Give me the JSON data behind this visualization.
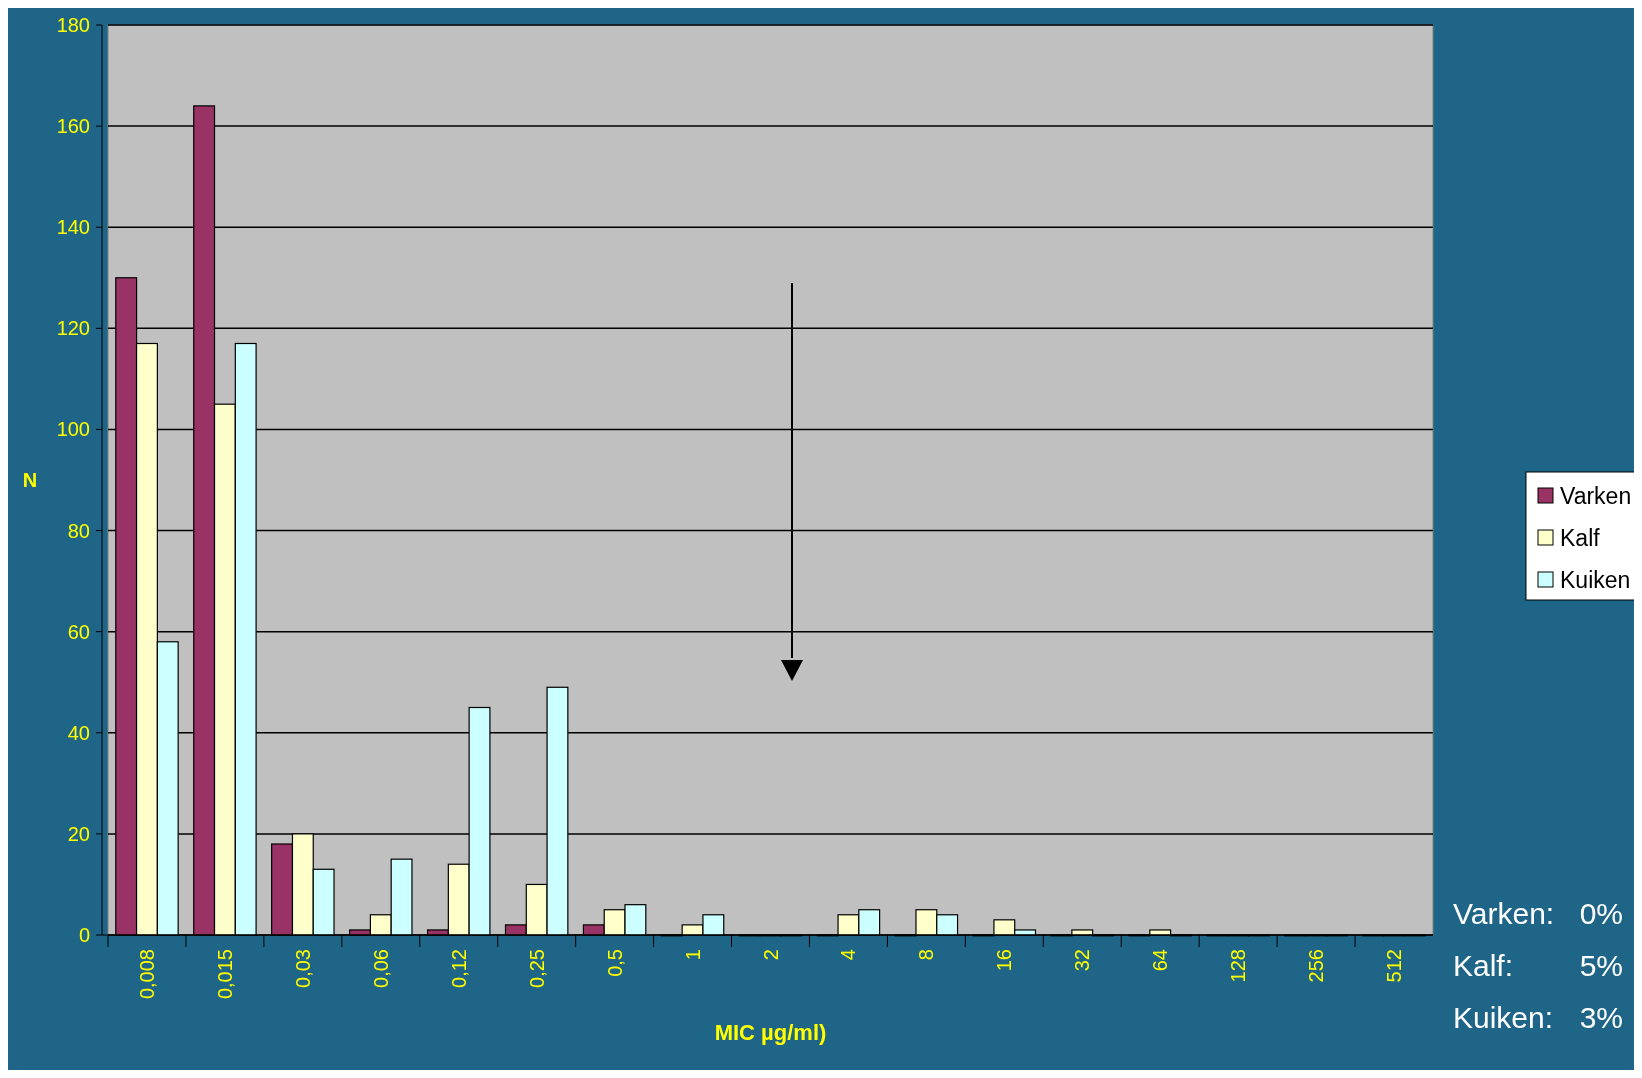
{
  "chart_data": {
    "type": "bar",
    "xlabel": "MIC µg/ml)",
    "ylabel": "N",
    "categories": [
      "0,008",
      "0,015",
      "0,03",
      "0,06",
      "0,12",
      "0,25",
      "0,5",
      "1",
      "2",
      "4",
      "8",
      "16",
      "32",
      "64",
      "128",
      "256",
      "512"
    ],
    "series": [
      {
        "name": "Varken",
        "color": "#993366",
        "values": [
          130,
          164,
          18,
          1,
          1,
          2,
          2,
          0,
          0,
          0,
          0,
          0,
          0,
          0,
          0,
          0,
          0
        ]
      },
      {
        "name": "Kalf",
        "color": "#ffffcc",
        "values": [
          117,
          105,
          20,
          4,
          14,
          10,
          5,
          2,
          0,
          4,
          5,
          3,
          1,
          1,
          0,
          0,
          0
        ]
      },
      {
        "name": "Kuiken",
        "color": "#ccffff",
        "values": [
          58,
          117,
          13,
          15,
          45,
          49,
          6,
          4,
          0,
          5,
          4,
          1,
          0,
          0,
          0,
          0,
          0
        ]
      }
    ],
    "ylim": [
      0,
      180
    ],
    "yticks": [
      0,
      20,
      40,
      60,
      80,
      100,
      120,
      140,
      160,
      180
    ],
    "grid": "y",
    "legend": "right",
    "annotations": [
      "Varken:",
      "0%",
      "Kalf:",
      "5%",
      "Kuiken:",
      "3%"
    ]
  }
}
